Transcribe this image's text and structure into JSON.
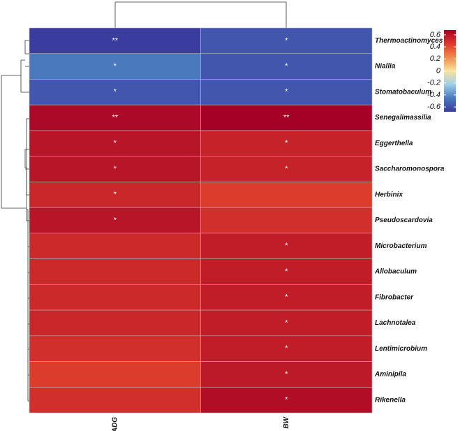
{
  "chart_data": {
    "type": "heatmap",
    "rows": [
      "Thermoactinomyces",
      "Niallia",
      "Stomatobaculum",
      "Senegalimassilia",
      "Eggerthella",
      "Saccharomonospora",
      "Herbinix",
      "Pseudoscardovia",
      "Microbacterium",
      "Allobaculum",
      "Fibrobacter",
      "Lachnotalea",
      "Lentimicrobium",
      "Aminipila",
      "Rikenella"
    ],
    "columns": [
      "ADG",
      "BW"
    ],
    "values": [
      [
        -0.68,
        -0.58
      ],
      [
        -0.45,
        -0.58
      ],
      [
        -0.58,
        -0.58
      ],
      [
        0.65,
        0.68
      ],
      [
        0.6,
        0.55
      ],
      [
        0.6,
        0.55
      ],
      [
        0.53,
        0.45
      ],
      [
        0.6,
        0.5
      ],
      [
        0.52,
        0.57
      ],
      [
        0.52,
        0.57
      ],
      [
        0.52,
        0.57
      ],
      [
        0.53,
        0.57
      ],
      [
        0.5,
        0.57
      ],
      [
        0.45,
        0.58
      ],
      [
        0.5,
        0.63
      ]
    ],
    "annotations": [
      [
        "**",
        "*"
      ],
      [
        "*",
        "*"
      ],
      [
        "*",
        "*"
      ],
      [
        "**",
        "**"
      ],
      [
        "*",
        "*"
      ],
      [
        "*",
        "*"
      ],
      [
        "*",
        null
      ],
      [
        "*",
        null
      ],
      [
        null,
        "*"
      ],
      [
        null,
        "*"
      ],
      [
        null,
        "*"
      ],
      [
        null,
        "*"
      ],
      [
        null,
        "*"
      ],
      [
        null,
        "*"
      ],
      [
        null,
        "*"
      ]
    ],
    "colors": [
      "#3a3c9e",
      "#4a78bd",
      "#9fcfe6",
      "#fbe49c",
      "#f08a4b",
      "#dc3b2c",
      "#a50026"
    ],
    "clim": [
      -0.68,
      0.68
    ],
    "colorbar_ticks": [
      0.6,
      0.4,
      0.2,
      0,
      -0.2,
      -0.4,
      -0.6
    ]
  }
}
